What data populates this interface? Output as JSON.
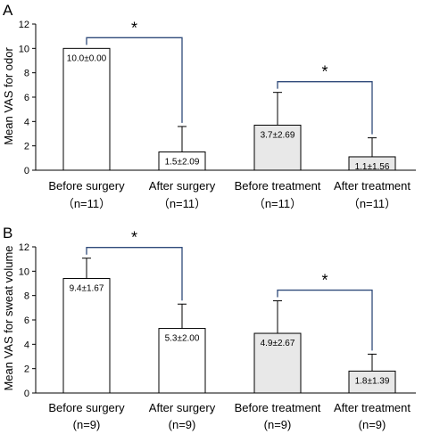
{
  "chart_data": [
    {
      "panel": "A",
      "type": "bar",
      "ylabel": "Mean VAS for odor",
      "ylim": [
        0,
        12
      ],
      "yticks": [
        0,
        2,
        4,
        6,
        8,
        10,
        12
      ],
      "categories": [
        "Before surgery",
        "After surgery",
        "Before treatment",
        "After treatment"
      ],
      "n_labels": [
        "（n=11）",
        "（n=11）",
        "（n=11）",
        "（n=11）"
      ],
      "values": [
        10.0,
        1.5,
        3.7,
        1.1
      ],
      "errors": [
        0.0,
        2.09,
        2.69,
        1.56
      ],
      "data_labels": [
        "10.0±0.00",
        "1.5±2.09",
        "3.7±2.69",
        "1.1±1.56"
      ],
      "bar_colors": [
        "#ffffff",
        "#ffffff",
        "#e8e8e8",
        "#e8e8e8"
      ],
      "significance": [
        {
          "from": 0,
          "to": 1,
          "label": "*"
        },
        {
          "from": 2,
          "to": 3,
          "label": "*"
        }
      ]
    },
    {
      "panel": "B",
      "type": "bar",
      "ylabel": "Mean VAS for sweat volume",
      "ylim": [
        0,
        12
      ],
      "yticks": [
        0,
        2,
        4,
        6,
        8,
        10,
        12
      ],
      "categories": [
        "Before surgery",
        "After surgery",
        "Before treatment",
        "After treatment"
      ],
      "n_labels": [
        "(n=9)",
        "(n=9)",
        "(n=9)",
        "(n=9)"
      ],
      "values": [
        9.4,
        5.3,
        4.9,
        1.8
      ],
      "errors": [
        1.67,
        2.0,
        2.67,
        1.39
      ],
      "data_labels": [
        "9.4±1.67",
        "5.3±2.00",
        "4.9±2.67",
        "1.8±1.39"
      ],
      "bar_colors": [
        "#ffffff",
        "#ffffff",
        "#e8e8e8",
        "#e8e8e8"
      ],
      "significance": [
        {
          "from": 0,
          "to": 1,
          "label": "*"
        },
        {
          "from": 2,
          "to": 3,
          "label": "*"
        }
      ]
    }
  ]
}
